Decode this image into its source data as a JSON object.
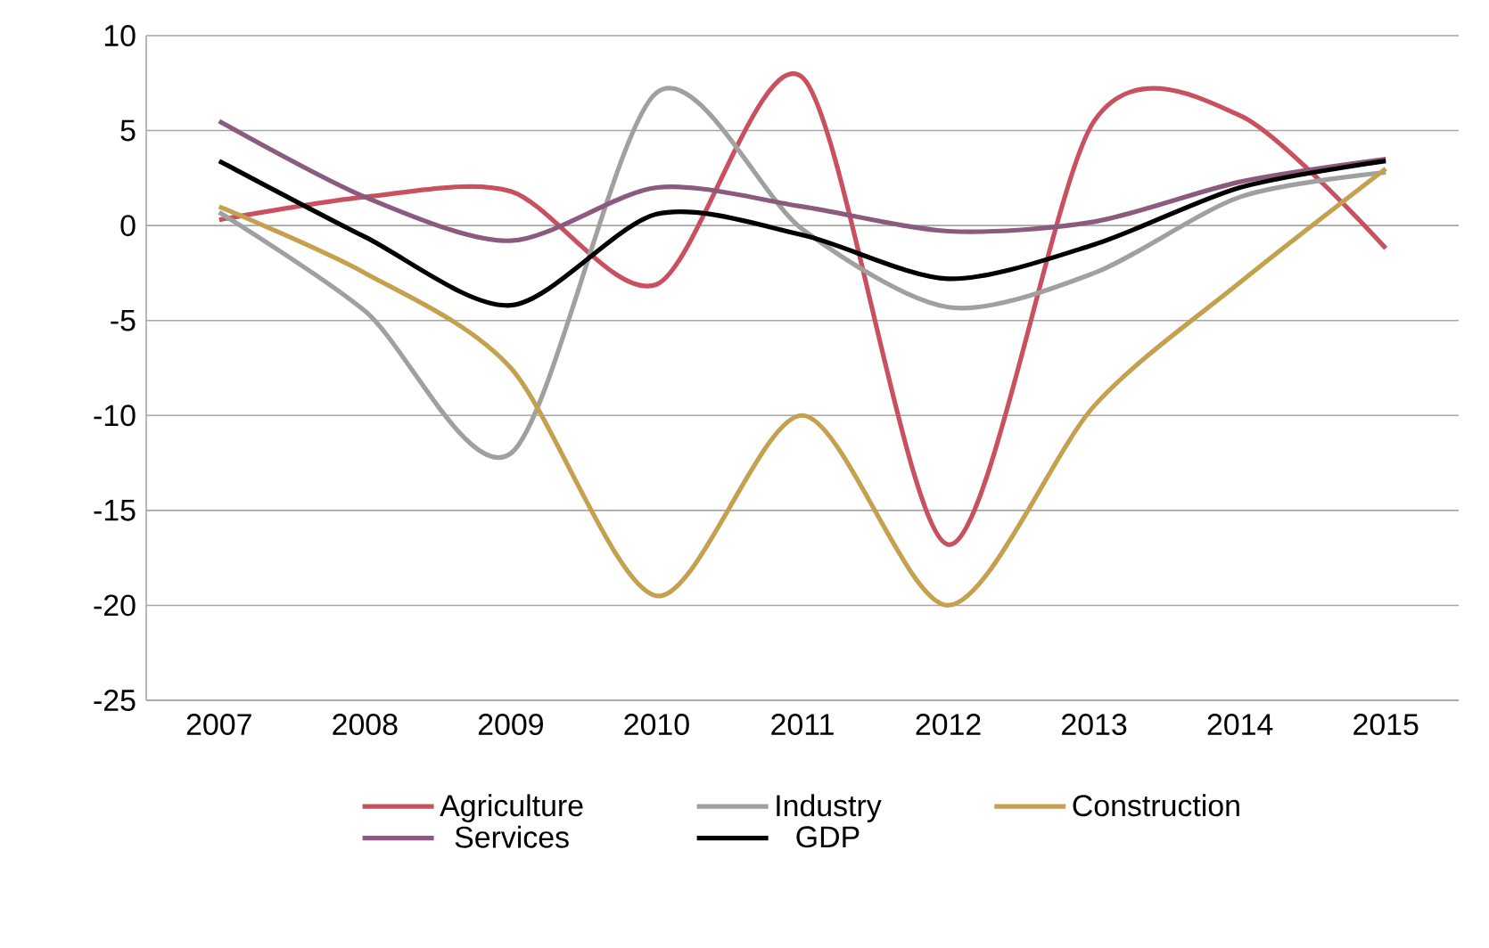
{
  "chart_data": {
    "type": "line",
    "categories": [
      "2007",
      "2008",
      "2009",
      "2010",
      "2011",
      "2012",
      "2013",
      "2014",
      "2015"
    ],
    "series": [
      {
        "name": "Agriculture",
        "color": "#c9505f",
        "values": [
          0.3,
          1.5,
          1.8,
          -3.1,
          7.8,
          -16.8,
          5.5,
          5.8,
          -1.2
        ]
      },
      {
        "name": "Industry",
        "color": "#a0a0a0",
        "values": [
          0.7,
          -4.5,
          -12,
          7,
          -0.2,
          -4.3,
          -2.5,
          1.5,
          2.8
        ]
      },
      {
        "name": "Construction",
        "color": "#c5a04e",
        "values": [
          1.0,
          -2.5,
          -7.5,
          -19.5,
          -10,
          -20,
          -9.5,
          -3,
          3
        ]
      },
      {
        "name": "Services",
        "color": "#8c5a7e",
        "values": [
          5.5,
          1.5,
          -0.8,
          2.0,
          1.0,
          -0.3,
          0.2,
          2.3,
          3.5
        ]
      },
      {
        "name": "GDP",
        "color": "#000000",
        "values": [
          3.4,
          -0.6,
          -4.2,
          0.6,
          -0.5,
          -2.8,
          -1,
          2.0,
          3.4
        ]
      }
    ],
    "ylim": [
      -25,
      10
    ],
    "yticks": [
      -25,
      -20,
      -15,
      -10,
      -5,
      0,
      5,
      10
    ],
    "grid": "y",
    "legend": "bottom",
    "marker": "none",
    "line_style": "solid"
  }
}
